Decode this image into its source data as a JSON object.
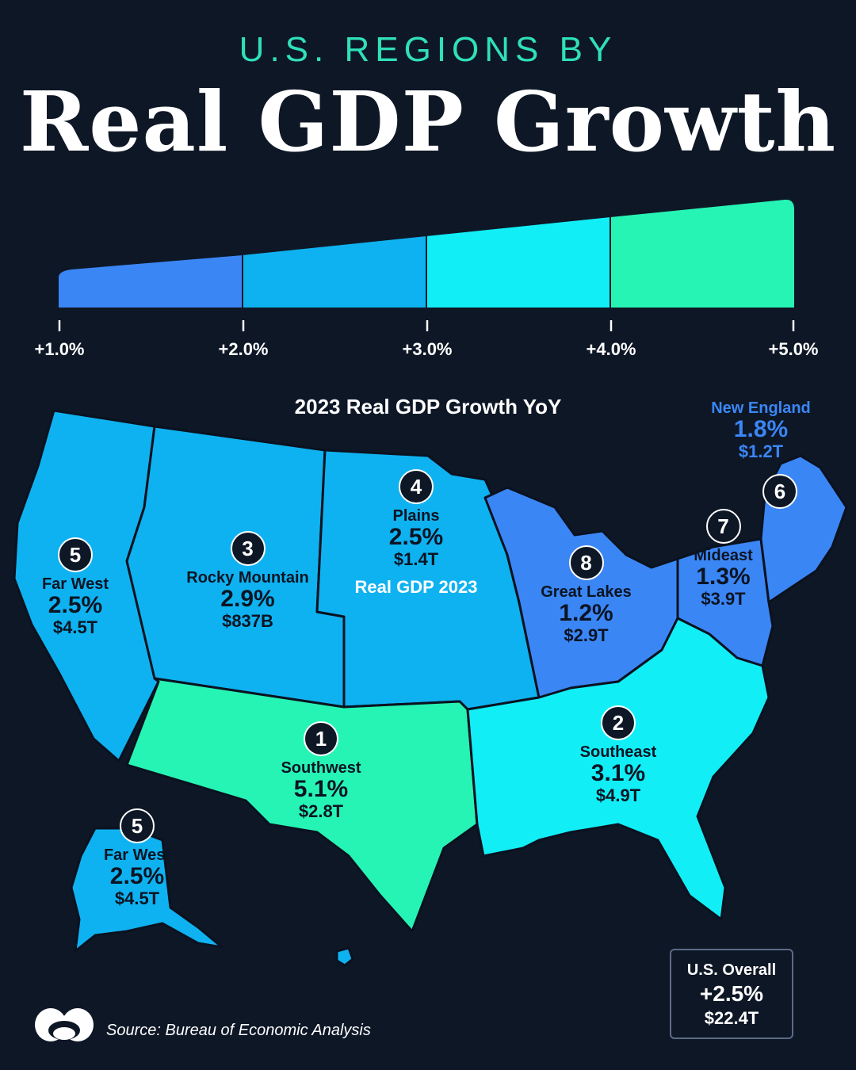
{
  "header": {
    "kicker": "U.S. REGIONS BY",
    "title": "Real GDP Growth"
  },
  "scale": {
    "ticks": [
      "+1.0%",
      "+2.0%",
      "+3.0%",
      "+4.0%",
      "+5.0%"
    ],
    "colors": [
      "#3b86f5",
      "#0fb2f0",
      "#12eef6",
      "#26f4b4"
    ]
  },
  "legend": {
    "title": "2023 Real GDP Growth YoY",
    "growth_label": "Plains",
    "gdp_label": "Real GDP 2023"
  },
  "regions": [
    {
      "rank": "1",
      "name": "Southwest",
      "growth": "5.1%",
      "gdp": "$2.8T",
      "color": "#26f4b4"
    },
    {
      "rank": "2",
      "name": "Southeast",
      "growth": "3.1%",
      "gdp": "$4.9T",
      "color": "#12eef6"
    },
    {
      "rank": "3",
      "name": "Rocky Mountain",
      "growth": "2.9%",
      "gdp": "$837B",
      "color": "#0fb2f0"
    },
    {
      "rank": "4",
      "name": "Plains",
      "growth": "2.5%",
      "gdp": "$1.4T",
      "color": "#0fb2f0"
    },
    {
      "rank": "5",
      "name": "Far West",
      "growth": "2.5%",
      "gdp": "$4.5T",
      "color": "#0fb2f0"
    },
    {
      "rank": "6",
      "name": "New England",
      "growth": "1.8%",
      "gdp": "$1.2T",
      "color": "#3b86f5"
    },
    {
      "rank": "7",
      "name": "Mideast",
      "growth": "1.3%",
      "gdp": "$3.9T",
      "color": "#3b86f5"
    },
    {
      "rank": "8",
      "name": "Great Lakes",
      "growth": "1.2%",
      "gdp": "$2.9T",
      "color": "#3b86f5"
    }
  ],
  "alaska": {
    "rank": "5",
    "name": "Far West",
    "growth": "2.5%",
    "gdp": "$4.5T"
  },
  "overall": {
    "label": "U.S. Overall",
    "growth": "+2.5%",
    "gdp": "$22.4T"
  },
  "source": "Source: Bureau of Economic Analysis"
}
